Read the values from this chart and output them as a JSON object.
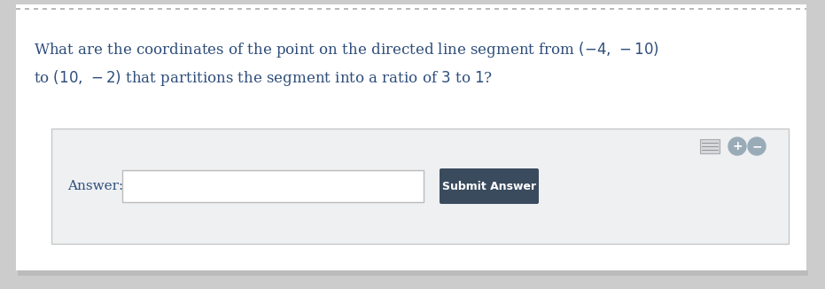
{
  "question_line1": "What are the coordinates of the point on the directed line segment from $(-4,\\,-10)$",
  "question_line2": "to $(10,\\,-2)$ that partitions the segment into a ratio of $3$ to $1$?",
  "answer_label": "Answer:",
  "submit_label": "Submit Answer",
  "bg_color": "#ffffff",
  "panel_bg_color": "#eef0f2",
  "panel_border_color": "#c8c8c8",
  "text_color": "#2e4d7b",
  "submit_bg_color": "#3b4b5e",
  "submit_text_color": "#ffffff",
  "input_bg_color": "#ffffff",
  "input_border_color": "#bbbbbb",
  "dashed_line_color": "#aaaaaa",
  "outer_bg_color": "#cccccc",
  "shadow_color": "#bbbbbb",
  "fig_width": 9.31,
  "fig_height": 3.26,
  "dpi": 100
}
